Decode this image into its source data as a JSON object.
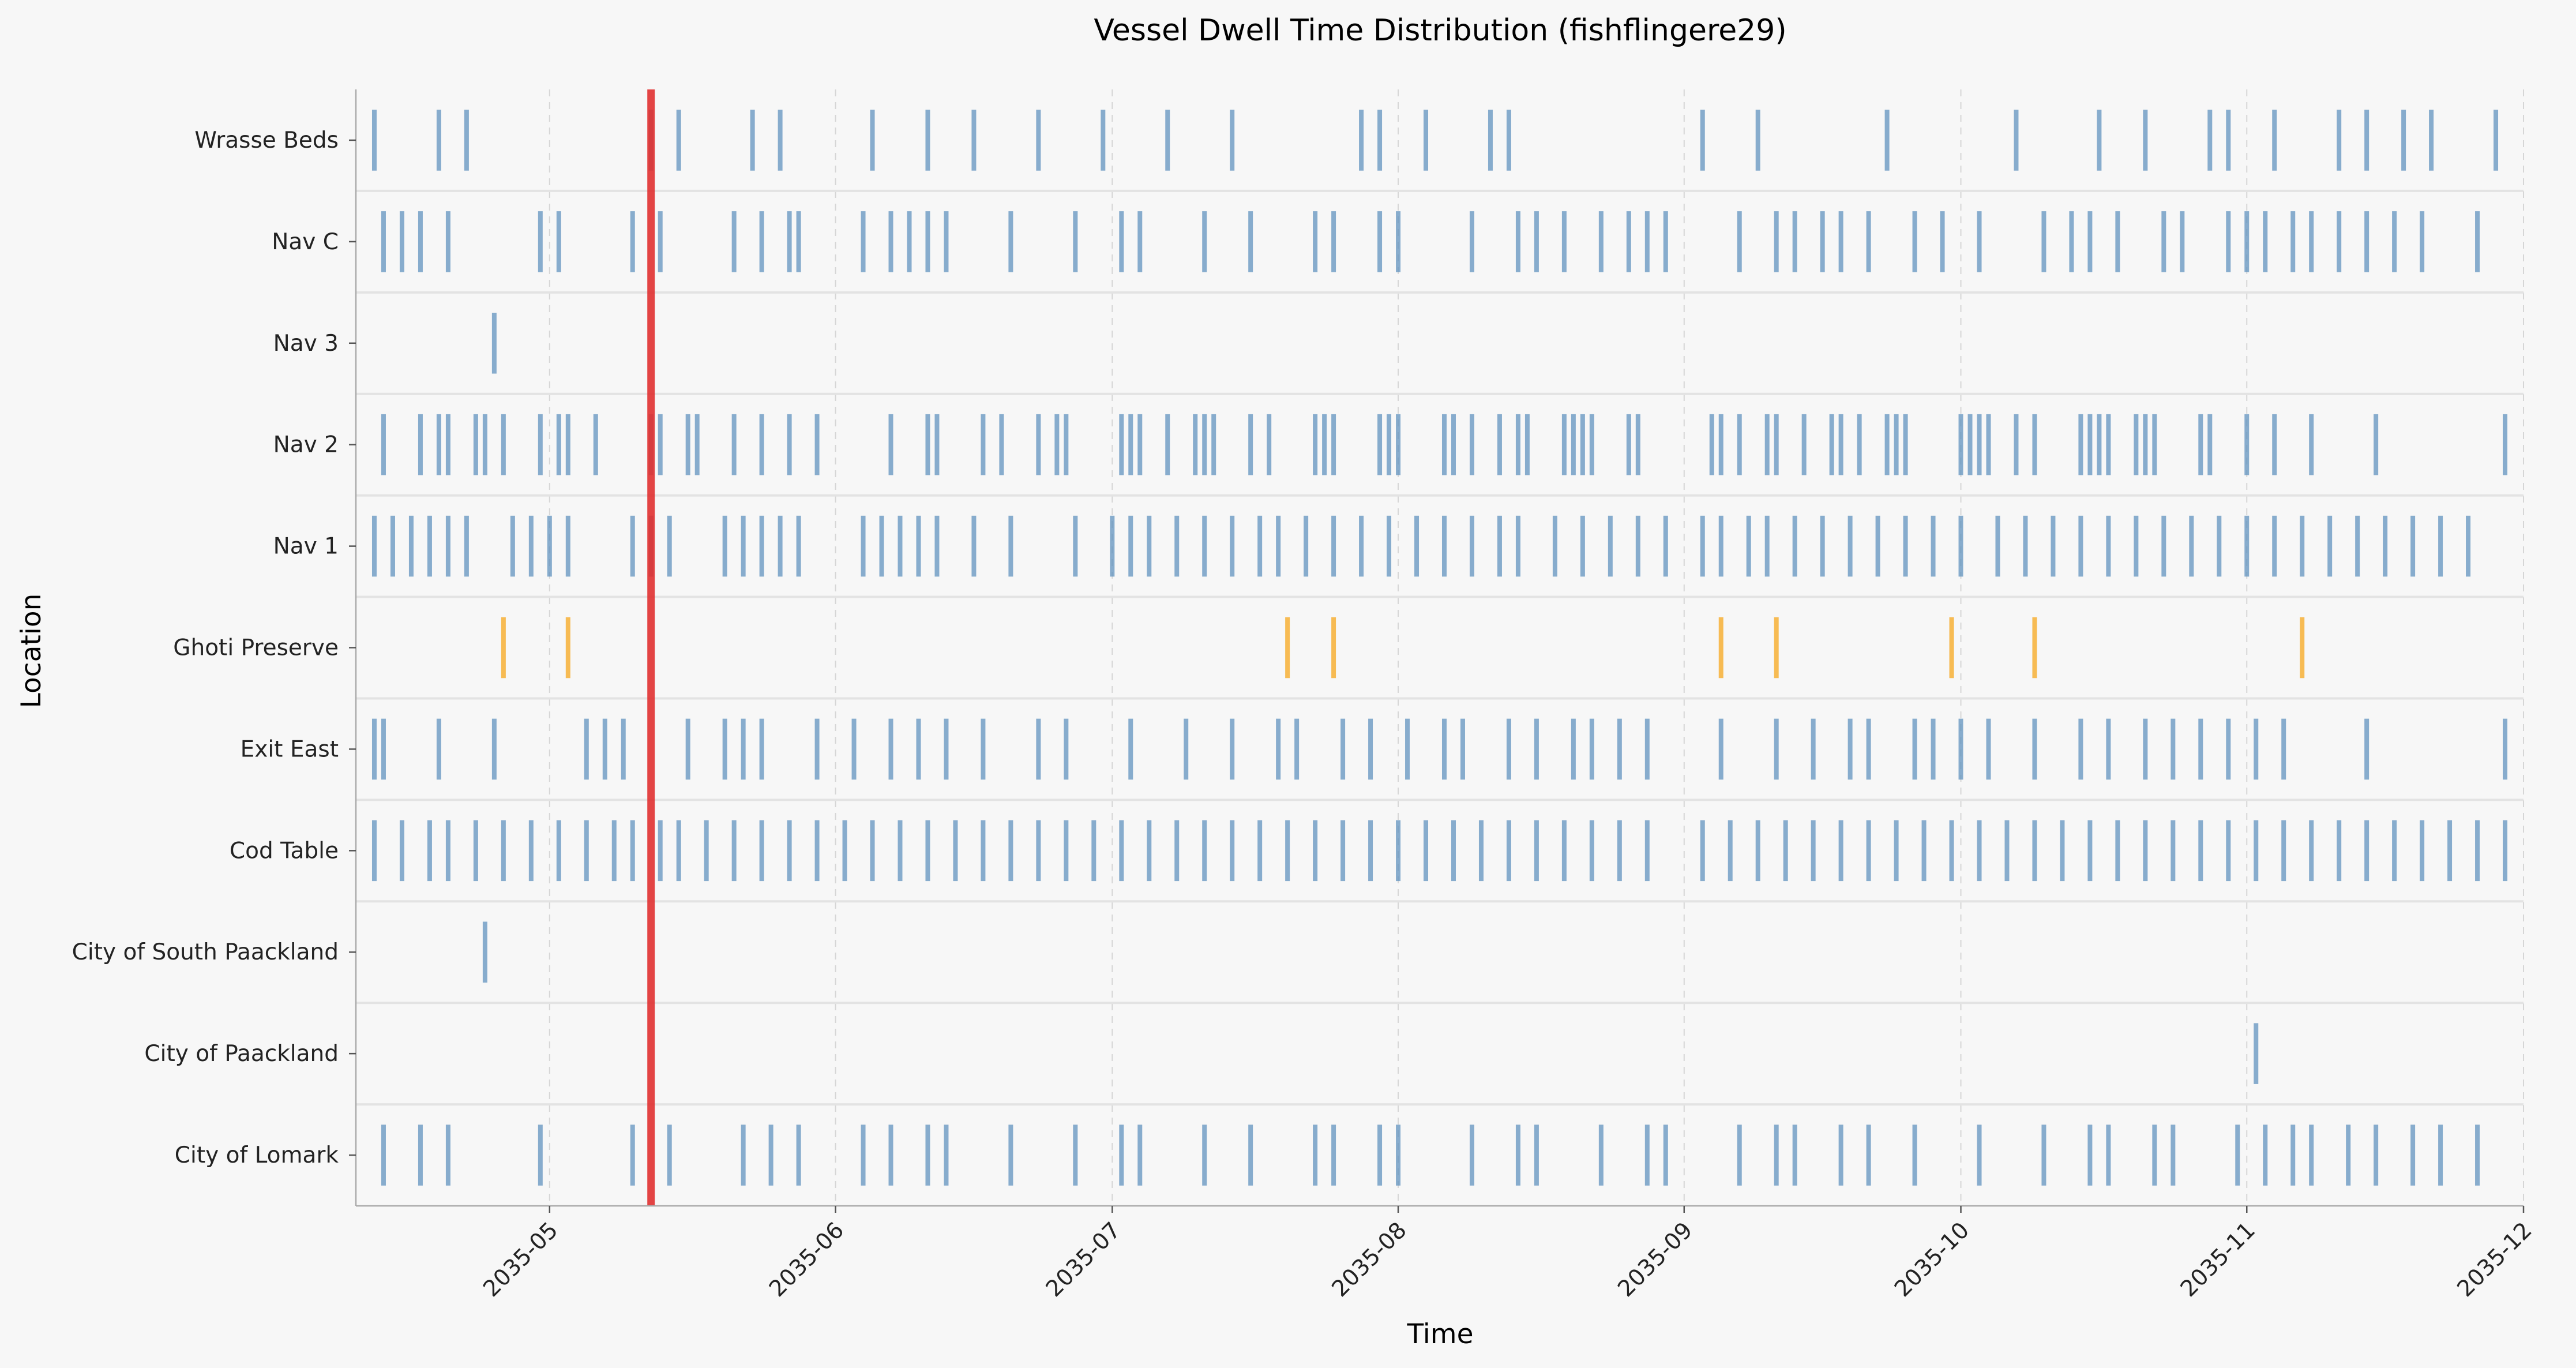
{
  "chart_data": {
    "type": "event-strip",
    "title": "Vessel Dwell Time Distribution (fishflingere29)",
    "xlabel": "Time",
    "ylabel": "Location",
    "xlim": [
      "2035-04-10",
      "2035-12-01"
    ],
    "x_ticks": [
      "2035-05",
      "2035-06",
      "2035-07",
      "2035-08",
      "2035-09",
      "2035-10",
      "2035-11",
      "2035-12"
    ],
    "categories": [
      "Wrasse Beds",
      "Nav C",
      "Nav 3",
      "Nav 2",
      "Nav 1",
      "Ghoti Preserve",
      "Exit East",
      "Cod Table",
      "City of South Paackland",
      "City of Paackland",
      "City of Lomark"
    ],
    "grid": "vertical dashed at month ticks",
    "colors": {
      "normal": "#5b8fbd",
      "highlight": "#f6b440",
      "marker": "#e03030"
    },
    "marker_line": "2035-05-12",
    "highlight_category": "Ghoti Preserve",
    "events": {
      "Wrasse Beds": [
        "2035-04-12",
        "2035-04-19",
        "2035-04-22",
        "2035-05-12",
        "2035-05-15",
        "2035-05-23",
        "2035-05-26",
        "2035-06-05",
        "2035-06-11",
        "2035-06-16",
        "2035-06-23",
        "2035-06-30",
        "2035-07-07",
        "2035-07-14",
        "2035-07-28",
        "2035-07-30",
        "2035-08-04",
        "2035-08-11",
        "2035-08-13",
        "2035-09-03",
        "2035-09-09",
        "2035-09-23",
        "2035-10-07",
        "2035-10-16",
        "2035-10-21",
        "2035-10-28",
        "2035-10-30",
        "2035-11-04",
        "2035-11-11",
        "2035-11-14",
        "2035-11-18",
        "2035-11-21",
        "2035-11-28"
      ],
      "Nav C": [
        "2035-04-13",
        "2035-04-15",
        "2035-04-17",
        "2035-04-20",
        "2035-04-30",
        "2035-05-02",
        "2035-05-10",
        "2035-05-13",
        "2035-05-21",
        "2035-05-24",
        "2035-05-27",
        "2035-05-28",
        "2035-06-04",
        "2035-06-07",
        "2035-06-09",
        "2035-06-11",
        "2035-06-13",
        "2035-06-20",
        "2035-06-27",
        "2035-07-02",
        "2035-07-04",
        "2035-07-11",
        "2035-07-16",
        "2035-07-23",
        "2035-07-25",
        "2035-07-30",
        "2035-08-01",
        "2035-08-09",
        "2035-08-14",
        "2035-08-16",
        "2035-08-19",
        "2035-08-23",
        "2035-08-26",
        "2035-08-28",
        "2035-08-30",
        "2035-09-07",
        "2035-09-11",
        "2035-09-13",
        "2035-09-16",
        "2035-09-18",
        "2035-09-21",
        "2035-09-26",
        "2035-09-29",
        "2035-10-03",
        "2035-10-10",
        "2035-10-13",
        "2035-10-15",
        "2035-10-18",
        "2035-10-23",
        "2035-10-25",
        "2035-10-30",
        "2035-11-01",
        "2035-11-03",
        "2035-11-06",
        "2035-11-08",
        "2035-11-11",
        "2035-11-14",
        "2035-11-17",
        "2035-11-20",
        "2035-11-26"
      ],
      "Nav 3": [
        "2035-04-25"
      ],
      "Nav 2": [
        "2035-04-13",
        "2035-04-17",
        "2035-04-19",
        "2035-04-20",
        "2035-04-23",
        "2035-04-24",
        "2035-04-26",
        "2035-04-30",
        "2035-05-02",
        "2035-05-03",
        "2035-05-06",
        "2035-05-12",
        "2035-05-13",
        "2035-05-16",
        "2035-05-17",
        "2035-05-21",
        "2035-05-24",
        "2035-05-27",
        "2035-05-30",
        "2035-06-07",
        "2035-06-11",
        "2035-06-12",
        "2035-06-17",
        "2035-06-19",
        "2035-06-23",
        "2035-06-25",
        "2035-06-26",
        "2035-07-02",
        "2035-07-03",
        "2035-07-04",
        "2035-07-07",
        "2035-07-10",
        "2035-07-11",
        "2035-07-12",
        "2035-07-16",
        "2035-07-18",
        "2035-07-23",
        "2035-07-24",
        "2035-07-25",
        "2035-07-30",
        "2035-07-31",
        "2035-08-01",
        "2035-08-06",
        "2035-08-07",
        "2035-08-09",
        "2035-08-12",
        "2035-08-14",
        "2035-08-15",
        "2035-08-19",
        "2035-08-20",
        "2035-08-21",
        "2035-08-22",
        "2035-08-26",
        "2035-08-27",
        "2035-09-04",
        "2035-09-05",
        "2035-09-07",
        "2035-09-10",
        "2035-09-11",
        "2035-09-14",
        "2035-09-17",
        "2035-09-18",
        "2035-09-20",
        "2035-09-23",
        "2035-09-24",
        "2035-09-25",
        "2035-10-01",
        "2035-10-02",
        "2035-10-03",
        "2035-10-04",
        "2035-10-07",
        "2035-10-09",
        "2035-10-14",
        "2035-10-15",
        "2035-10-16",
        "2035-10-17",
        "2035-10-20",
        "2035-10-21",
        "2035-10-22",
        "2035-10-27",
        "2035-10-28",
        "2035-11-01",
        "2035-11-04",
        "2035-11-08",
        "2035-11-15",
        "2035-11-29"
      ],
      "Nav 1": [
        "2035-04-12",
        "2035-04-14",
        "2035-04-16",
        "2035-04-18",
        "2035-04-20",
        "2035-04-22",
        "2035-04-27",
        "2035-04-29",
        "2035-05-01",
        "2035-05-03",
        "2035-05-10",
        "2035-05-12",
        "2035-05-14",
        "2035-05-20",
        "2035-05-22",
        "2035-05-24",
        "2035-05-26",
        "2035-05-28",
        "2035-06-04",
        "2035-06-06",
        "2035-06-08",
        "2035-06-10",
        "2035-06-12",
        "2035-06-16",
        "2035-06-20",
        "2035-06-27",
        "2035-07-01",
        "2035-07-03",
        "2035-07-05",
        "2035-07-08",
        "2035-07-11",
        "2035-07-14",
        "2035-07-17",
        "2035-07-19",
        "2035-07-22",
        "2035-07-25",
        "2035-07-28",
        "2035-07-31",
        "2035-08-03",
        "2035-08-06",
        "2035-08-09",
        "2035-08-12",
        "2035-08-14",
        "2035-08-18",
        "2035-08-21",
        "2035-08-24",
        "2035-08-27",
        "2035-08-30",
        "2035-09-03",
        "2035-09-05",
        "2035-09-08",
        "2035-09-10",
        "2035-09-13",
        "2035-09-16",
        "2035-09-19",
        "2035-09-22",
        "2035-09-25",
        "2035-09-28",
        "2035-10-01",
        "2035-10-05",
        "2035-10-08",
        "2035-10-11",
        "2035-10-14",
        "2035-10-17",
        "2035-10-20",
        "2035-10-23",
        "2035-10-26",
        "2035-10-29",
        "2035-11-01",
        "2035-11-04",
        "2035-11-07",
        "2035-11-10",
        "2035-11-13",
        "2035-11-16",
        "2035-11-19",
        "2035-11-22",
        "2035-11-25"
      ],
      "Ghoti Preserve": [
        "2035-04-26",
        "2035-05-03",
        "2035-07-20",
        "2035-07-25",
        "2035-09-05",
        "2035-09-11",
        "2035-09-30",
        "2035-10-09",
        "2035-11-07"
      ],
      "Exit East": [
        "2035-04-12",
        "2035-04-13",
        "2035-04-19",
        "2035-04-25",
        "2035-05-05",
        "2035-05-07",
        "2035-05-09",
        "2035-05-16",
        "2035-05-20",
        "2035-05-22",
        "2035-05-24",
        "2035-05-30",
        "2035-06-03",
        "2035-06-07",
        "2035-06-10",
        "2035-06-13",
        "2035-06-17",
        "2035-06-23",
        "2035-06-26",
        "2035-07-03",
        "2035-07-09",
        "2035-07-14",
        "2035-07-19",
        "2035-07-21",
        "2035-07-26",
        "2035-07-29",
        "2035-08-02",
        "2035-08-06",
        "2035-08-08",
        "2035-08-13",
        "2035-08-16",
        "2035-08-20",
        "2035-08-22",
        "2035-08-25",
        "2035-08-28",
        "2035-09-05",
        "2035-09-11",
        "2035-09-15",
        "2035-09-19",
        "2035-09-21",
        "2035-09-26",
        "2035-09-28",
        "2035-10-01",
        "2035-10-04",
        "2035-10-09",
        "2035-10-14",
        "2035-10-17",
        "2035-10-21",
        "2035-10-24",
        "2035-10-27",
        "2035-10-30",
        "2035-11-02",
        "2035-11-05",
        "2035-11-14",
        "2035-11-29"
      ],
      "Cod Table": [
        "2035-04-12",
        "2035-04-15",
        "2035-04-18",
        "2035-04-20",
        "2035-04-23",
        "2035-04-26",
        "2035-04-29",
        "2035-05-02",
        "2035-05-05",
        "2035-05-08",
        "2035-05-10",
        "2035-05-13",
        "2035-05-15",
        "2035-05-18",
        "2035-05-21",
        "2035-05-24",
        "2035-05-27",
        "2035-05-30",
        "2035-06-02",
        "2035-06-05",
        "2035-06-08",
        "2035-06-11",
        "2035-06-14",
        "2035-06-17",
        "2035-06-20",
        "2035-06-23",
        "2035-06-26",
        "2035-06-29",
        "2035-07-02",
        "2035-07-05",
        "2035-07-08",
        "2035-07-11",
        "2035-07-14",
        "2035-07-17",
        "2035-07-20",
        "2035-07-23",
        "2035-07-26",
        "2035-07-29",
        "2035-08-01",
        "2035-08-04",
        "2035-08-07",
        "2035-08-10",
        "2035-08-13",
        "2035-08-16",
        "2035-08-19",
        "2035-08-22",
        "2035-08-25",
        "2035-08-28",
        "2035-09-03",
        "2035-09-06",
        "2035-09-09",
        "2035-09-12",
        "2035-09-15",
        "2035-09-18",
        "2035-09-21",
        "2035-09-24",
        "2035-09-27",
        "2035-09-30",
        "2035-10-03",
        "2035-10-06",
        "2035-10-09",
        "2035-10-12",
        "2035-10-15",
        "2035-10-18",
        "2035-10-21",
        "2035-10-24",
        "2035-10-27",
        "2035-10-30",
        "2035-11-02",
        "2035-11-05",
        "2035-11-08",
        "2035-11-11",
        "2035-11-14",
        "2035-11-17",
        "2035-11-20",
        "2035-11-23",
        "2035-11-26",
        "2035-11-29"
      ],
      "City of South Paackland": [
        "2035-04-24"
      ],
      "City of Paackland": [
        "2035-11-02"
      ],
      "City of Lomark": [
        "2035-04-13",
        "2035-04-17",
        "2035-04-20",
        "2035-04-30",
        "2035-05-10",
        "2035-05-14",
        "2035-05-22",
        "2035-05-25",
        "2035-05-28",
        "2035-06-04",
        "2035-06-07",
        "2035-06-11",
        "2035-06-13",
        "2035-06-20",
        "2035-06-27",
        "2035-07-02",
        "2035-07-04",
        "2035-07-11",
        "2035-07-16",
        "2035-07-23",
        "2035-07-25",
        "2035-07-30",
        "2035-08-01",
        "2035-08-09",
        "2035-08-14",
        "2035-08-16",
        "2035-08-23",
        "2035-08-28",
        "2035-08-30",
        "2035-09-07",
        "2035-09-11",
        "2035-09-13",
        "2035-09-18",
        "2035-09-21",
        "2035-09-26",
        "2035-10-03",
        "2035-10-10",
        "2035-10-15",
        "2035-10-17",
        "2035-10-22",
        "2035-10-24",
        "2035-10-31",
        "2035-11-03",
        "2035-11-06",
        "2035-11-08",
        "2035-11-12",
        "2035-11-15",
        "2035-11-19",
        "2035-11-22",
        "2035-11-26"
      ]
    }
  }
}
